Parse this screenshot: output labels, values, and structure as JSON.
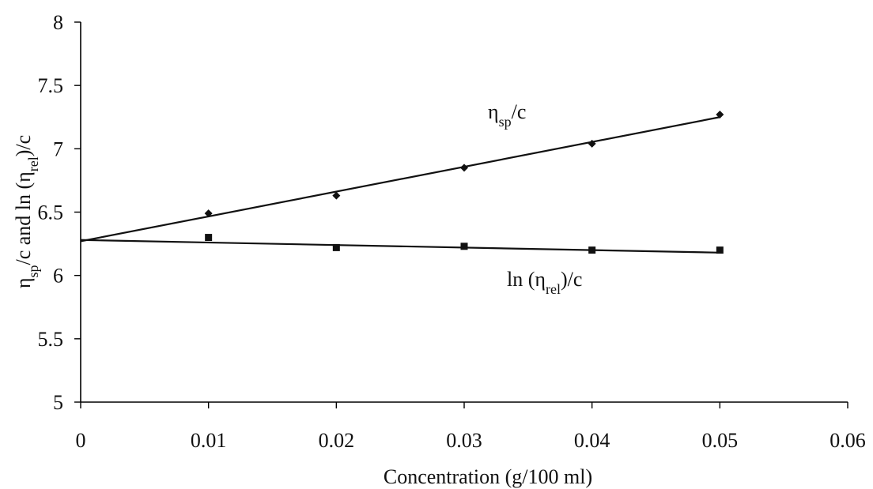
{
  "chart_data": {
    "type": "scatter",
    "title": "",
    "xlabel": "Concentration (g/100 ml)",
    "ylabel": {
      "parts": [
        {
          "text": "η",
          "sub": false
        },
        {
          "text": "sp",
          "sub": true
        },
        {
          "text": "/c and  ln (η",
          "sub": false
        },
        {
          "text": "rel",
          "sub": true
        },
        {
          "text": ")/c",
          "sub": false
        }
      ]
    },
    "xlim": [
      0,
      0.06
    ],
    "ylim": [
      5,
      8
    ],
    "x_ticks": [
      "0",
      "0.01",
      "0.02",
      "0.03",
      "0.04",
      "0.05",
      "0.06"
    ],
    "y_ticks": [
      "5",
      "5.5",
      "6",
      "6.5",
      "7",
      "7.5",
      "8"
    ],
    "grid": false,
    "legend": "none",
    "series": [
      {
        "name_parts": [
          {
            "text": "η",
            "sub": false
          },
          {
            "text": "sp",
            "sub": true
          },
          {
            "text": "/c",
            "sub": false
          }
        ],
        "marker": "diamond",
        "x": [
          0.01,
          0.02,
          0.03,
          0.04,
          0.05
        ],
        "y": [
          6.49,
          6.63,
          6.85,
          7.04,
          7.27
        ],
        "trendline": {
          "intercept": 6.27,
          "slope": 19.6,
          "x_range": [
            0,
            0.05
          ]
        }
      },
      {
        "name_parts": [
          {
            "text": "ln (η",
            "sub": false
          },
          {
            "text": "rel",
            "sub": true
          },
          {
            "text": ")/c",
            "sub": false
          }
        ],
        "marker": "square",
        "x": [
          0.01,
          0.02,
          0.03,
          0.04,
          0.05
        ],
        "y": [
          6.3,
          6.22,
          6.23,
          6.2,
          6.2
        ],
        "trendline": {
          "intercept": 6.28,
          "slope": -2.0,
          "x_range": [
            0,
            0.05
          ]
        }
      }
    ]
  }
}
